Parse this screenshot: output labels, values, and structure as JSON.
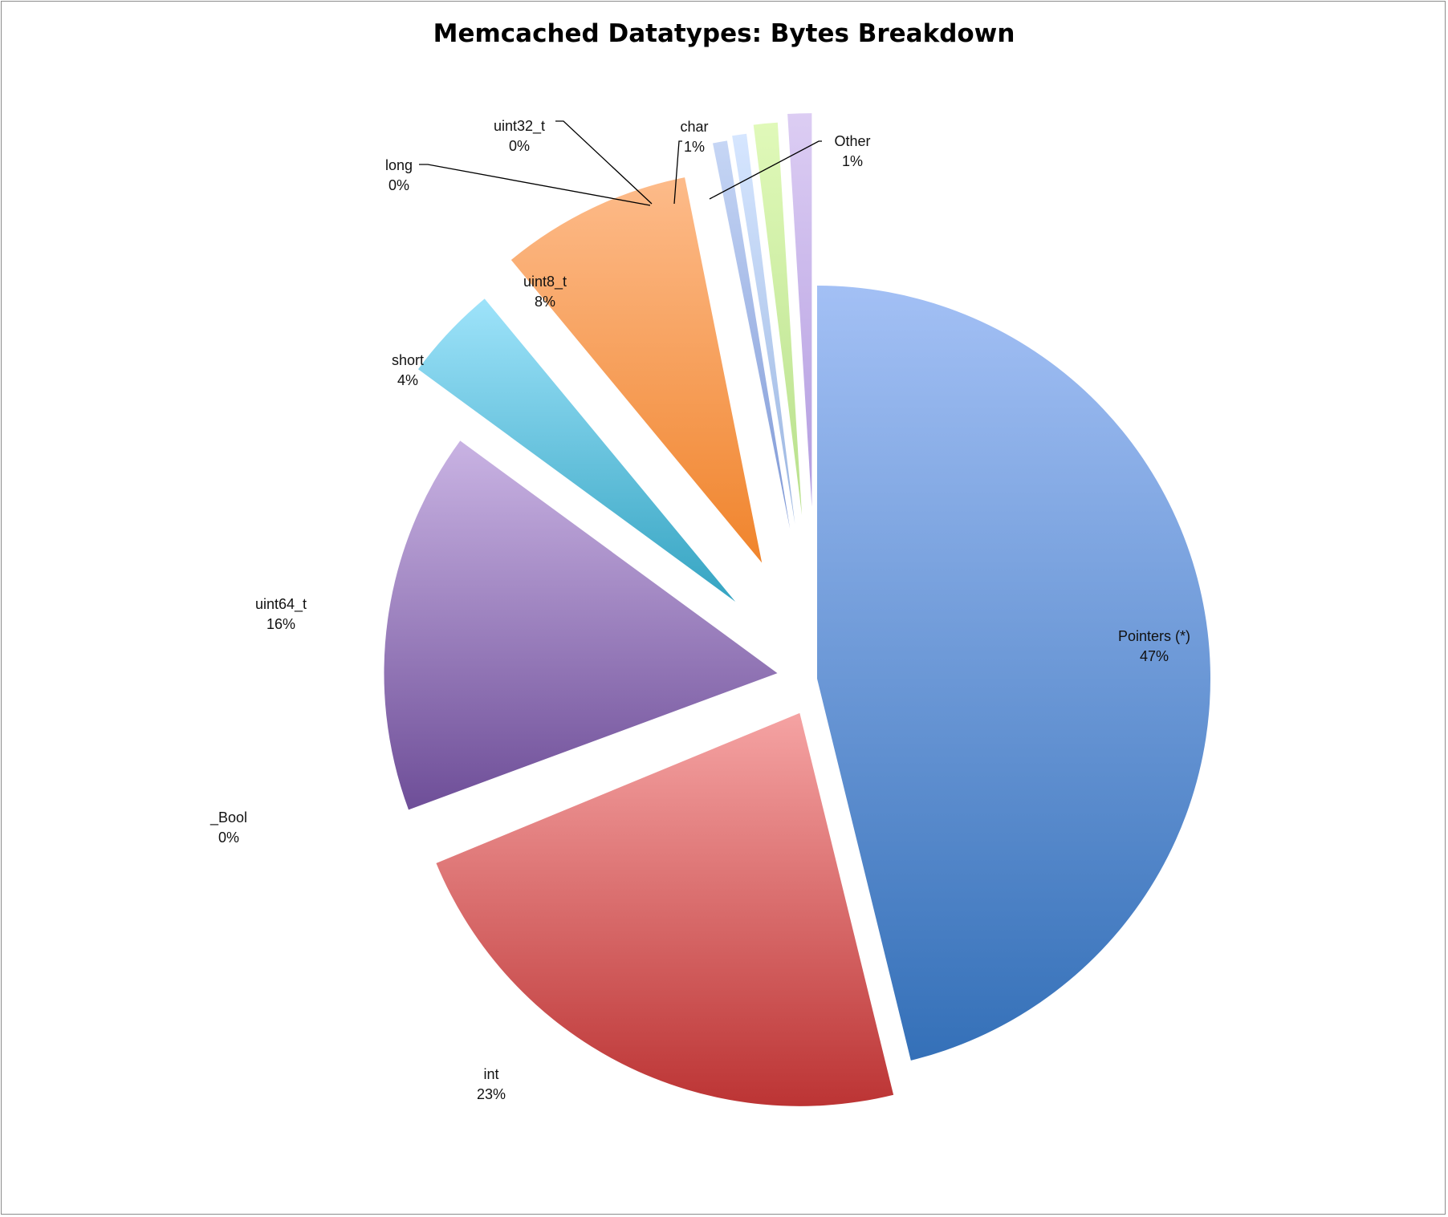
{
  "chart_data": {
    "type": "pie",
    "title": "Memcached Datatypes: Bytes Breakdown",
    "exploded": true,
    "slices": [
      {
        "name": "Pointers (*)",
        "value": 47,
        "label": "47%",
        "color_top": "#a3c0f5",
        "color_bottom": "#3470b8"
      },
      {
        "name": "int",
        "value": 23,
        "label": "23%",
        "color_top": "#f5a3a3",
        "color_bottom": "#bc3434"
      },
      {
        "name": "_Bool",
        "value": 0,
        "label": "0%",
        "color_top": "#dddddd",
        "color_bottom": "#999999"
      },
      {
        "name": "uint64_t",
        "value": 16,
        "label": "16%",
        "color_top": "#c9b3e3",
        "color_bottom": "#6e4e98"
      },
      {
        "name": "short",
        "value": 4,
        "label": "4%",
        "color_top": "#9ee3fa",
        "color_bottom": "#35a4c2"
      },
      {
        "name": "uint8_t",
        "value": 8,
        "label": "8%",
        "color_top": "#fdbb8a",
        "color_bottom": "#f0842c"
      },
      {
        "name": "long",
        "value": 0,
        "label": "0%",
        "color_top": "#c6d6f5",
        "color_bottom": "#7e98d6"
      },
      {
        "name": "uint32_t",
        "value": 0,
        "label": "0%",
        "color_top": "#d6e6ff",
        "color_bottom": "#9ab5e0"
      },
      {
        "name": "char",
        "value": 1,
        "label": "1%",
        "color_top": "#e0f9b9",
        "color_bottom": "#b8e08b"
      },
      {
        "name": "Other",
        "value": 1,
        "label": "1%",
        "color_top": "#dccdf3",
        "color_bottom": "#b39ce0"
      }
    ]
  }
}
